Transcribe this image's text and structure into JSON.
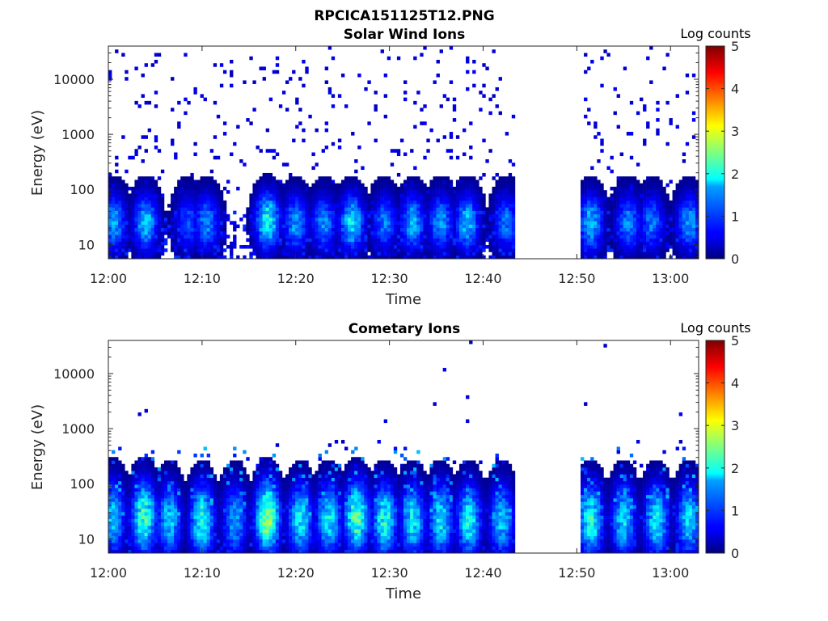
{
  "figure_title": "RPCICA151125T12.PNG",
  "chart_data": [
    {
      "type": "heatmap",
      "title": "Solar Wind Ions",
      "xlabel": "Time",
      "ylabel": "Energy (eV)",
      "x_ticks": [
        "12:00",
        "12:10",
        "12:20",
        "12:30",
        "12:40",
        "12:50",
        "13:00"
      ],
      "x_range_minutes": [
        0,
        63
      ],
      "y_ticks": [
        "10",
        "100",
        "1000",
        "10000"
      ],
      "y_scale": "log",
      "y_range": [
        5.5,
        40000
      ],
      "colorbar": {
        "label": "Log counts",
        "ticks": [
          "0",
          "1",
          "2",
          "3",
          "4",
          "5"
        ],
        "range": [
          0,
          5
        ],
        "colormap": "jet"
      },
      "data_gap_minutes": [
        43.5,
        50.5
      ],
      "background_level_log_counts": 0.3,
      "bursts": [
        {
          "t": 0.6,
          "e": 25,
          "log_counts": 1.4
        },
        {
          "t": 4.0,
          "e": 25,
          "log_counts": 1.6
        },
        {
          "t": 8.5,
          "e": 25,
          "log_counts": 1.0
        },
        {
          "t": 10.5,
          "e": 25,
          "log_counts": 1.3
        },
        {
          "t": 17.0,
          "e": 27,
          "log_counts": 2.0
        },
        {
          "t": 20.0,
          "e": 25,
          "log_counts": 1.4
        },
        {
          "t": 23.0,
          "e": 25,
          "log_counts": 1.3
        },
        {
          "t": 26.0,
          "e": 25,
          "log_counts": 1.8
        },
        {
          "t": 29.5,
          "e": 25,
          "log_counts": 1.2
        },
        {
          "t": 32.5,
          "e": 25,
          "log_counts": 1.5
        },
        {
          "t": 35.5,
          "e": 25,
          "log_counts": 1.4
        },
        {
          "t": 38.3,
          "e": 25,
          "log_counts": 1.6
        },
        {
          "t": 42.5,
          "e": 25,
          "log_counts": 1.2
        },
        {
          "t": 51.5,
          "e": 25,
          "log_counts": 1.6
        },
        {
          "t": 55.5,
          "e": 25,
          "log_counts": 1.3
        },
        {
          "t": 58.0,
          "e": 25,
          "log_counts": 1.2
        },
        {
          "t": 62.0,
          "e": 25,
          "log_counts": 1.4
        }
      ]
    },
    {
      "type": "heatmap",
      "title": "Cometary Ions",
      "xlabel": "Time",
      "ylabel": "Energy (eV)",
      "x_ticks": [
        "12:00",
        "12:10",
        "12:20",
        "12:30",
        "12:40",
        "12:50",
        "13:00"
      ],
      "x_range_minutes": [
        0,
        63
      ],
      "y_ticks": [
        "10",
        "100",
        "1000",
        "10000"
      ],
      "y_scale": "log",
      "y_range": [
        5.5,
        40000
      ],
      "colorbar": {
        "label": "Log counts",
        "ticks": [
          "0",
          "1",
          "2",
          "3",
          "4",
          "5"
        ],
        "range": [
          0,
          5
        ],
        "colormap": "jet"
      },
      "data_gap_minutes": [
        43.5,
        50.5
      ],
      "background_level_log_counts": 0.3,
      "bursts": [
        {
          "t": 0.5,
          "e": 25,
          "log_counts": 1.6
        },
        {
          "t": 3.8,
          "e": 25,
          "log_counts": 2.2
        },
        {
          "t": 6.5,
          "e": 22,
          "log_counts": 1.6
        },
        {
          "t": 10.0,
          "e": 22,
          "log_counts": 2.0
        },
        {
          "t": 13.5,
          "e": 22,
          "log_counts": 1.4
        },
        {
          "t": 17.0,
          "e": 25,
          "log_counts": 2.6
        },
        {
          "t": 20.5,
          "e": 22,
          "log_counts": 1.8
        },
        {
          "t": 23.5,
          "e": 22,
          "log_counts": 1.8
        },
        {
          "t": 26.5,
          "e": 25,
          "log_counts": 2.3
        },
        {
          "t": 29.5,
          "e": 22,
          "log_counts": 2.0
        },
        {
          "t": 32.5,
          "e": 22,
          "log_counts": 1.8
        },
        {
          "t": 35.5,
          "e": 22,
          "log_counts": 1.8
        },
        {
          "t": 38.5,
          "e": 22,
          "log_counts": 1.9
        },
        {
          "t": 42.0,
          "e": 22,
          "log_counts": 1.6
        },
        {
          "t": 51.5,
          "e": 22,
          "log_counts": 2.0
        },
        {
          "t": 55.0,
          "e": 22,
          "log_counts": 1.7
        },
        {
          "t": 58.5,
          "e": 22,
          "log_counts": 1.8
        },
        {
          "t": 62.0,
          "e": 22,
          "log_counts": 1.7
        }
      ]
    }
  ]
}
